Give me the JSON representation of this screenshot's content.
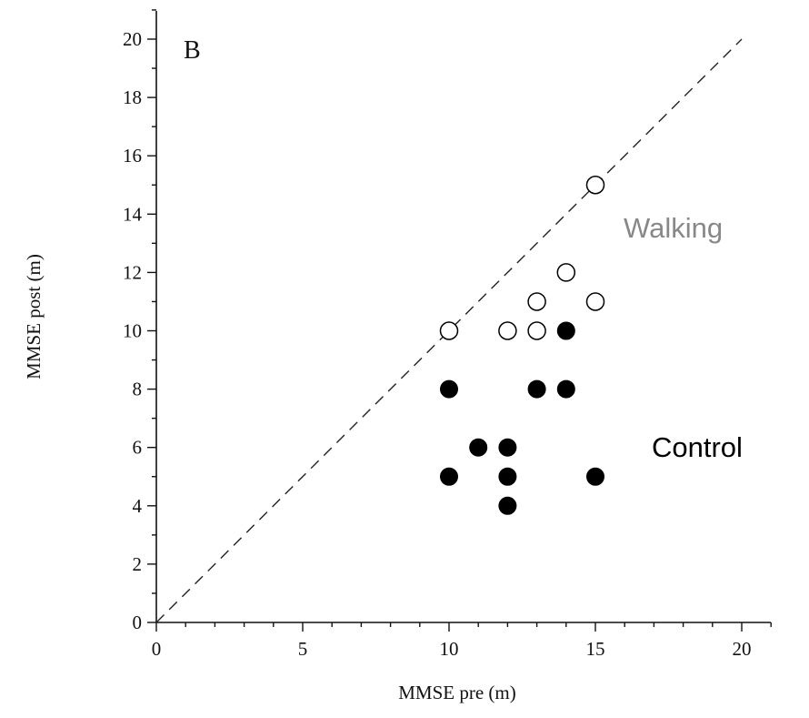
{
  "chart_data": {
    "type": "scatter",
    "panel_label": "B",
    "xlabel": "MMSE pre (m)",
    "ylabel": "MMSE post (m)",
    "xlim": [
      0,
      21
    ],
    "ylim": [
      0,
      21
    ],
    "x_ticks": [
      "0",
      "5",
      "10",
      "15",
      "20"
    ],
    "y_ticks": [
      "0",
      "2",
      "4",
      "6",
      "8",
      "10",
      "12",
      "14",
      "16",
      "18",
      "20"
    ],
    "reference_line": "identity (y = x), dashed",
    "grid": false,
    "series": [
      {
        "name": "Walking",
        "marker": "open-circle",
        "points": [
          {
            "x": 15,
            "y": 15
          },
          {
            "x": 14,
            "y": 12
          },
          {
            "x": 13,
            "y": 11
          },
          {
            "x": 15,
            "y": 11
          },
          {
            "x": 10,
            "y": 10
          },
          {
            "x": 12,
            "y": 10
          },
          {
            "x": 13,
            "y": 10
          }
        ]
      },
      {
        "name": "Control",
        "marker": "filled-circle",
        "points": [
          {
            "x": 14,
            "y": 10
          },
          {
            "x": 10,
            "y": 8
          },
          {
            "x": 13,
            "y": 8
          },
          {
            "x": 14,
            "y": 8
          },
          {
            "x": 11,
            "y": 6
          },
          {
            "x": 12,
            "y": 6
          },
          {
            "x": 10,
            "y": 5
          },
          {
            "x": 12,
            "y": 5
          },
          {
            "x": 15,
            "y": 5
          },
          {
            "x": 12,
            "y": 4
          }
        ]
      }
    ],
    "colors": {
      "axis": "#111111",
      "walking_label": "#888888",
      "control_label": "#000000",
      "filled_marker": "#000000",
      "open_marker_fill": "#ffffff"
    }
  }
}
